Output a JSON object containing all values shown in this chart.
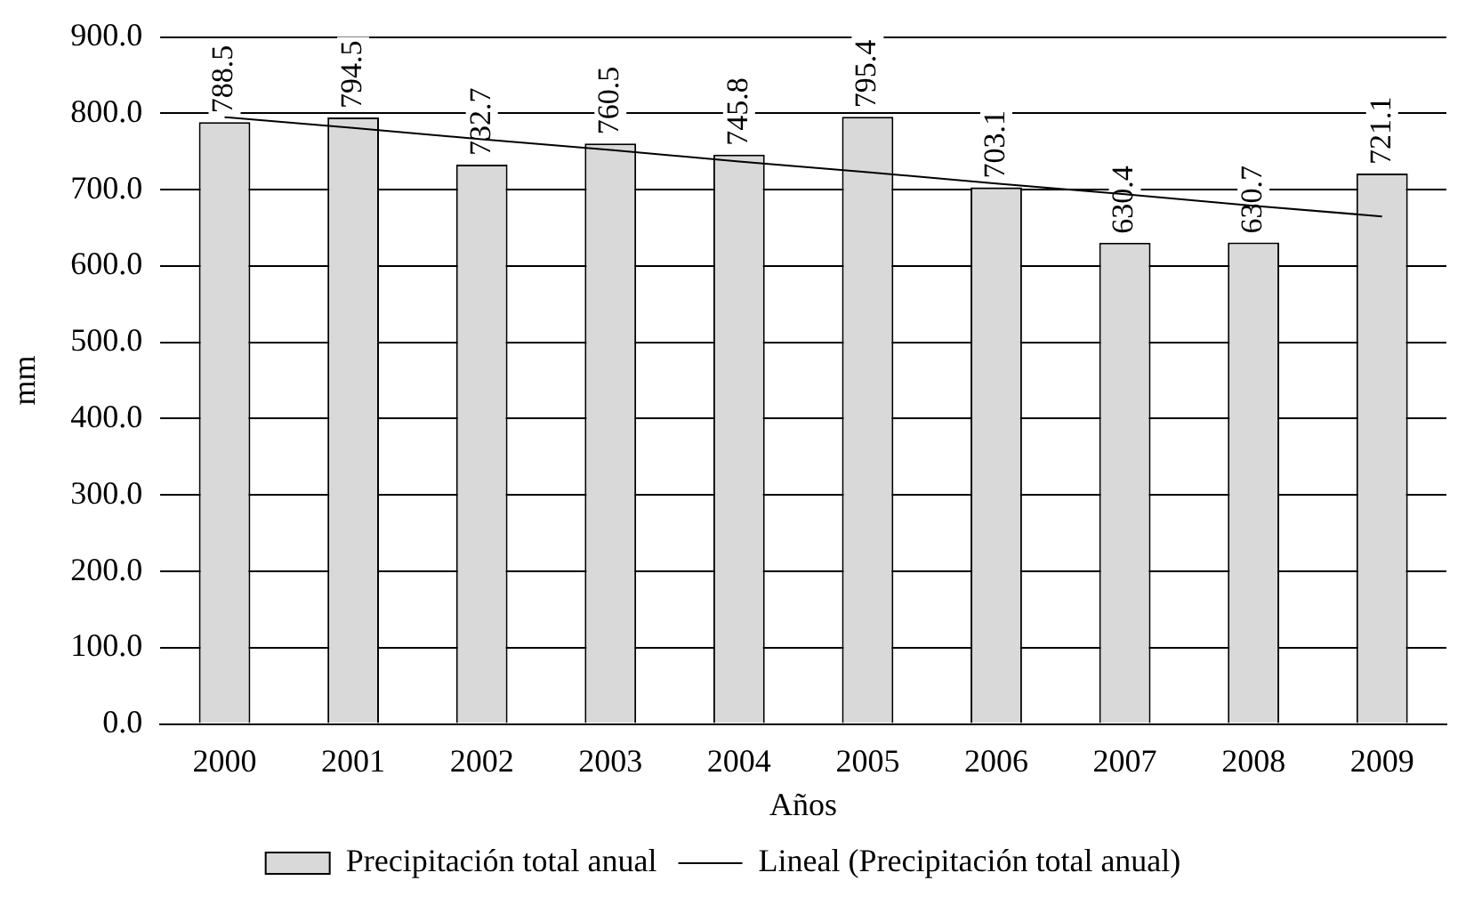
{
  "chart_data": {
    "type": "bar",
    "categories": [
      "2000",
      "2001",
      "2002",
      "2003",
      "2004",
      "2005",
      "2006",
      "2007",
      "2008",
      "2009"
    ],
    "series": [
      {
        "name": "Precipitación total anual",
        "color": "#d9d9d9",
        "values": [
          788.5,
          794.5,
          732.7,
          760.5,
          745.8,
          795.4,
          703.1,
          630.4,
          630.7,
          721.1
        ],
        "value_labels": [
          "788.5",
          "794.5",
          "732.7",
          "760.5",
          "745.8",
          "795.4",
          "703.1",
          "630.4",
          "630.7",
          "721.1"
        ]
      },
      {
        "name": "Lineal (Precipitación total anual)",
        "type": "line",
        "color": "#000000",
        "values": [
          795,
          781,
          766,
          752,
          737,
          723,
          708,
          694,
          679,
          665
        ]
      }
    ],
    "xlabel": "Años",
    "ylabel": "mm",
    "ylim": [
      0,
      900
    ],
    "yticks": [
      {
        "value": 0,
        "label": "0.0"
      },
      {
        "value": 100,
        "label": "100.0"
      },
      {
        "value": 200,
        "label": "200.0"
      },
      {
        "value": 300,
        "label": "300.0"
      },
      {
        "value": 400,
        "label": "400.0"
      },
      {
        "value": 500,
        "label": "500.0"
      },
      {
        "value": 600,
        "label": "600.0"
      },
      {
        "value": 700,
        "label": "700.0"
      },
      {
        "value": 800,
        "label": "800.0"
      },
      {
        "value": 900,
        "label": "900.0"
      }
    ],
    "grid": "y",
    "legend": "bottom",
    "marker": "none"
  }
}
